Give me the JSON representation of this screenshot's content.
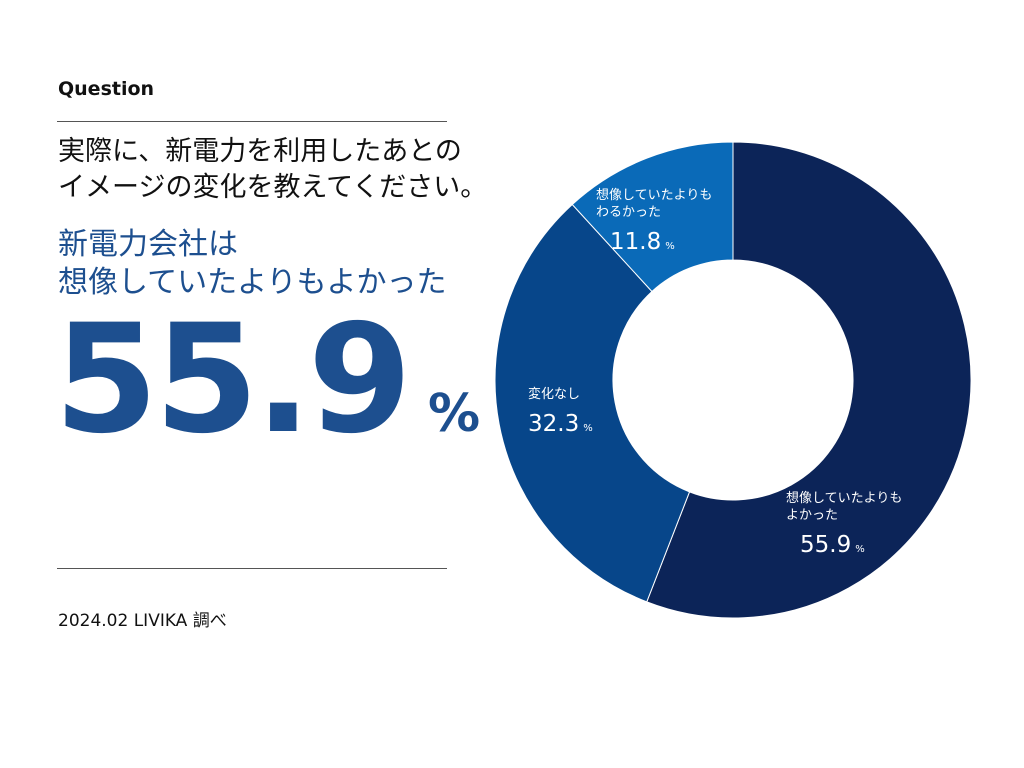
{
  "header": {
    "label": "Question",
    "question_lines": [
      "実際に、新電力を利用したあとの",
      "イメージの変化を教えてください。"
    ]
  },
  "highlight": {
    "lines": [
      "新電力会社は",
      "想像していたよりもよかった"
    ],
    "value": "55.9",
    "unit": "%"
  },
  "footer": {
    "source": "2024.02 LIVIKA 調べ"
  },
  "colors": {
    "accent": "#1d4f8f",
    "slice_better": "#0c2458",
    "slice_same": "#07468a",
    "slice_worse": "#0a6ab8"
  },
  "chart_data": {
    "type": "pie",
    "style": "donut",
    "unit": "%",
    "slices": [
      {
        "label_lines": [
          "想像していたよりも",
          "よかった"
        ],
        "value": 55.9,
        "display": "55.9",
        "color": "#0c2458"
      },
      {
        "label_lines": [
          "変化なし"
        ],
        "value": 32.3,
        "display": "32.3",
        "color": "#07468a"
      },
      {
        "label_lines": [
          "想像していたよりも",
          "わるかった"
        ],
        "value": 11.8,
        "display": "11.8",
        "color": "#0a6ab8"
      }
    ]
  }
}
